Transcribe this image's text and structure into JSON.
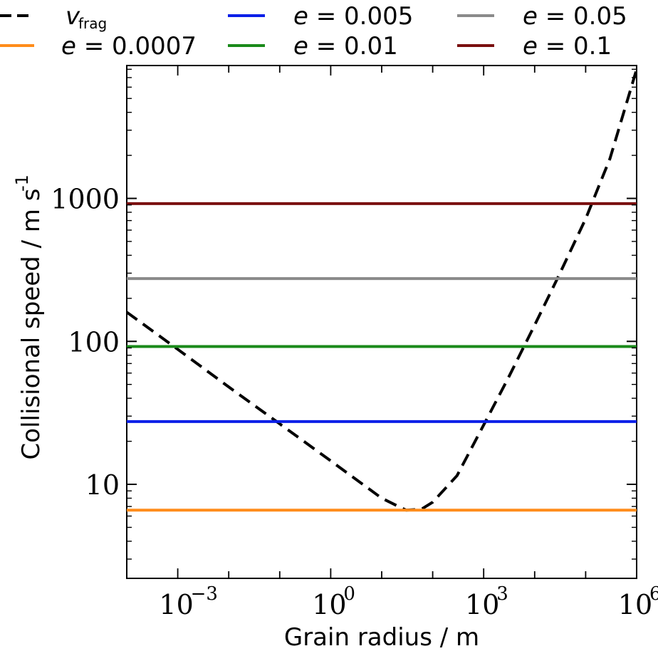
{
  "chart_data": {
    "type": "line",
    "title": "",
    "xlabel": "Grain radius / m",
    "ylabel": "Collisional speed / m s",
    "ylabel_superscript": "-1",
    "x_scale": "log",
    "y_scale": "log",
    "xlim": [
      0.0001,
      1000000
    ],
    "ylim": [
      2.2,
      8500
    ],
    "grid": false,
    "legend_position": "top",
    "x_ticks": [
      {
        "value": 0.001,
        "base": "10",
        "exponent": "−3"
      },
      {
        "value": 1,
        "base": "10",
        "exponent": "0"
      },
      {
        "value": 1000,
        "base": "10",
        "exponent": "3"
      },
      {
        "value": 1000000,
        "base": "10",
        "exponent": "6"
      }
    ],
    "y_ticks": [
      {
        "value": 10,
        "label": "10"
      },
      {
        "value": 100,
        "label": "100"
      },
      {
        "value": 1000,
        "label": "1000"
      }
    ],
    "series": [
      {
        "name": "v",
        "name_subscript": "frag",
        "color": "#000000",
        "dash": true,
        "x": [
          0.0001,
          0.001,
          0.01,
          0.1,
          1,
          10,
          30,
          60,
          100,
          300,
          1000,
          3000,
          10000,
          30000,
          100000,
          300000,
          1000000
        ],
        "y": [
          160,
          88,
          48,
          26.5,
          14.6,
          8.0,
          6.6,
          6.7,
          7.5,
          11.5,
          26,
          55,
          130,
          290,
          720,
          1900,
          8000
        ]
      },
      {
        "name": "e = 0.0007",
        "color": "#ff8c1a",
        "x": [
          0.0001,
          1000000
        ],
        "y": [
          6.6,
          6.6
        ]
      },
      {
        "name": "e = 0.005",
        "color": "#0a1fe8",
        "x": [
          0.0001,
          1000000
        ],
        "y": [
          27.5,
          27.5
        ]
      },
      {
        "name": "e = 0.01",
        "color": "#1a8a1a",
        "x": [
          0.0001,
          1000000
        ],
        "y": [
          92,
          92
        ]
      },
      {
        "name": "e = 0.05",
        "color": "#8a8a8a",
        "x": [
          0.0001,
          1000000
        ],
        "y": [
          275,
          275
        ]
      },
      {
        "name": "e = 0.1",
        "color": "#7a0f0f",
        "x": [
          0.0001,
          1000000
        ],
        "y": [
          920,
          920
        ]
      }
    ]
  }
}
